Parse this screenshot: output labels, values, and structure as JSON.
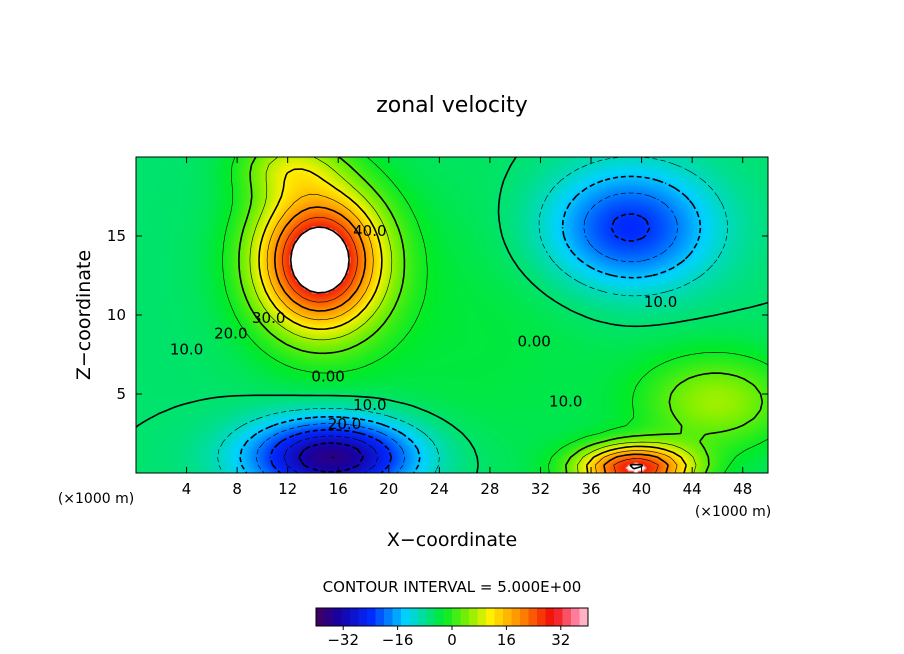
{
  "chart_data": {
    "type": "contour",
    "title": "zonal velocity",
    "xlabel": "X−coordinate",
    "ylabel": "Z−coordinate",
    "x_unit_left": "(×1000 m)",
    "x_unit_right": "(×1000 m)",
    "xlim": [
      0,
      50
    ],
    "ylim": [
      0,
      20
    ],
    "x_ticks": [
      4,
      8,
      12,
      16,
      20,
      24,
      28,
      32,
      36,
      40,
      44,
      48
    ],
    "y_ticks": [
      5,
      10,
      15
    ],
    "x_tick_labels": [
      "4",
      "8",
      "12",
      "16",
      "20",
      "24",
      "28",
      "32",
      "36",
      "40",
      "44",
      "48"
    ],
    "y_tick_labels": [
      "5",
      "10",
      "15"
    ],
    "contour_interval_text": "CONTOUR INTERVAL = 5.000E+00",
    "contour_interval": 5,
    "colorbar": {
      "min": -40,
      "max": 40,
      "ticks": [
        -32,
        -16,
        0,
        16,
        32
      ],
      "tick_labels": [
        "−32",
        "−16",
        "0",
        "16",
        "32"
      ]
    },
    "features": [
      {
        "name": "jet",
        "x": 14.5,
        "z": 13.5,
        "value": 48,
        "sx": 5.0,
        "sz": 4.5
      },
      {
        "name": "upper-left",
        "x": 12.0,
        "z": 19.5,
        "value": 12,
        "sx": 4.0,
        "sz": 2.0
      },
      {
        "name": "lower-trough",
        "x": 15.5,
        "z": 1.0,
        "value": -36,
        "sx": 6.5,
        "sz": 2.4
      },
      {
        "name": "upper-right-trough",
        "x": 39.0,
        "z": 15.5,
        "value": -22,
        "sx": 6.5,
        "sz": 3.8
      },
      {
        "name": "right-bottom-max",
        "x": 39.5,
        "z": 0.3,
        "value": 40,
        "sx": 4.5,
        "sz": 1.5
      },
      {
        "name": "right-mid",
        "x": 46.0,
        "z": 4.5,
        "value": 14,
        "sx": 6.0,
        "sz": 3.0
      },
      {
        "name": "background",
        "x": 26.0,
        "z": 9.0,
        "value": 3,
        "sx": 14.0,
        "sz": 10.0
      }
    ],
    "contour_labels": [
      {
        "text": "40.0",
        "x": 18.5,
        "z": 15.0
      },
      {
        "text": "30.0",
        "x": 10.5,
        "z": 9.5
      },
      {
        "text": "20.0",
        "x": 7.5,
        "z": 8.5
      },
      {
        "text": "10.0",
        "x": 4.0,
        "z": 7.5
      },
      {
        "text": "0.00",
        "x": 15.2,
        "z": 5.8
      },
      {
        "text": "10.0",
        "x": 18.5,
        "z": 4.0
      },
      {
        "text": "20.0",
        "x": 16.5,
        "z": 2.8
      },
      {
        "text": "0.00",
        "x": 31.5,
        "z": 8.0
      },
      {
        "text": "10.0",
        "x": 41.5,
        "z": 10.5
      },
      {
        "text": "10.0",
        "x": 34.0,
        "z": 4.2
      }
    ]
  }
}
